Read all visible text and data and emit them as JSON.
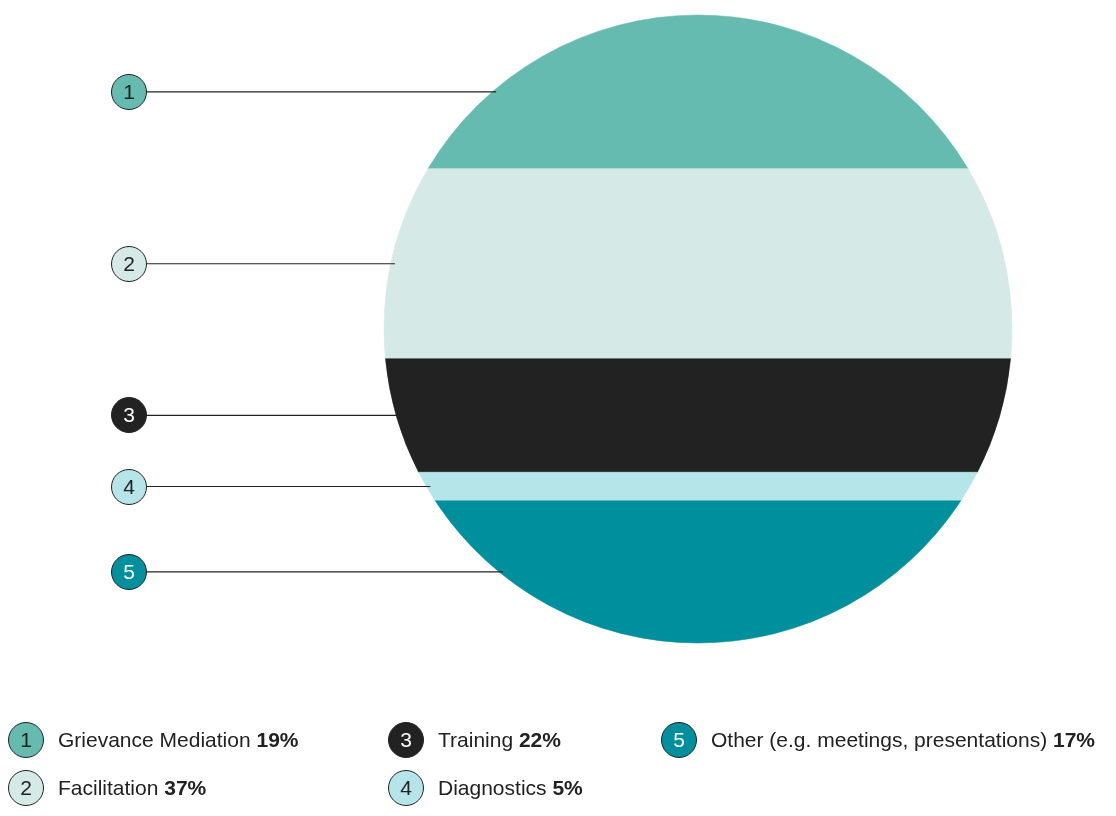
{
  "chart_data": {
    "type": "other",
    "categories": [
      "Grievance Mediation",
      "Facilitation",
      "Training",
      "Diagnostics",
      "Other (e.g. meetings, presentations)"
    ],
    "values": [
      19,
      37,
      22,
      5,
      17
    ],
    "value_labels": [
      "19%",
      "37%",
      "22%",
      "5%",
      "17%"
    ],
    "colors": [
      "#66bbb0",
      "#d5e9e6",
      "#222222",
      "#b5e5e8",
      "#008f9c"
    ],
    "annotations": [
      "1",
      "2",
      "3",
      "4",
      "5"
    ]
  }
}
